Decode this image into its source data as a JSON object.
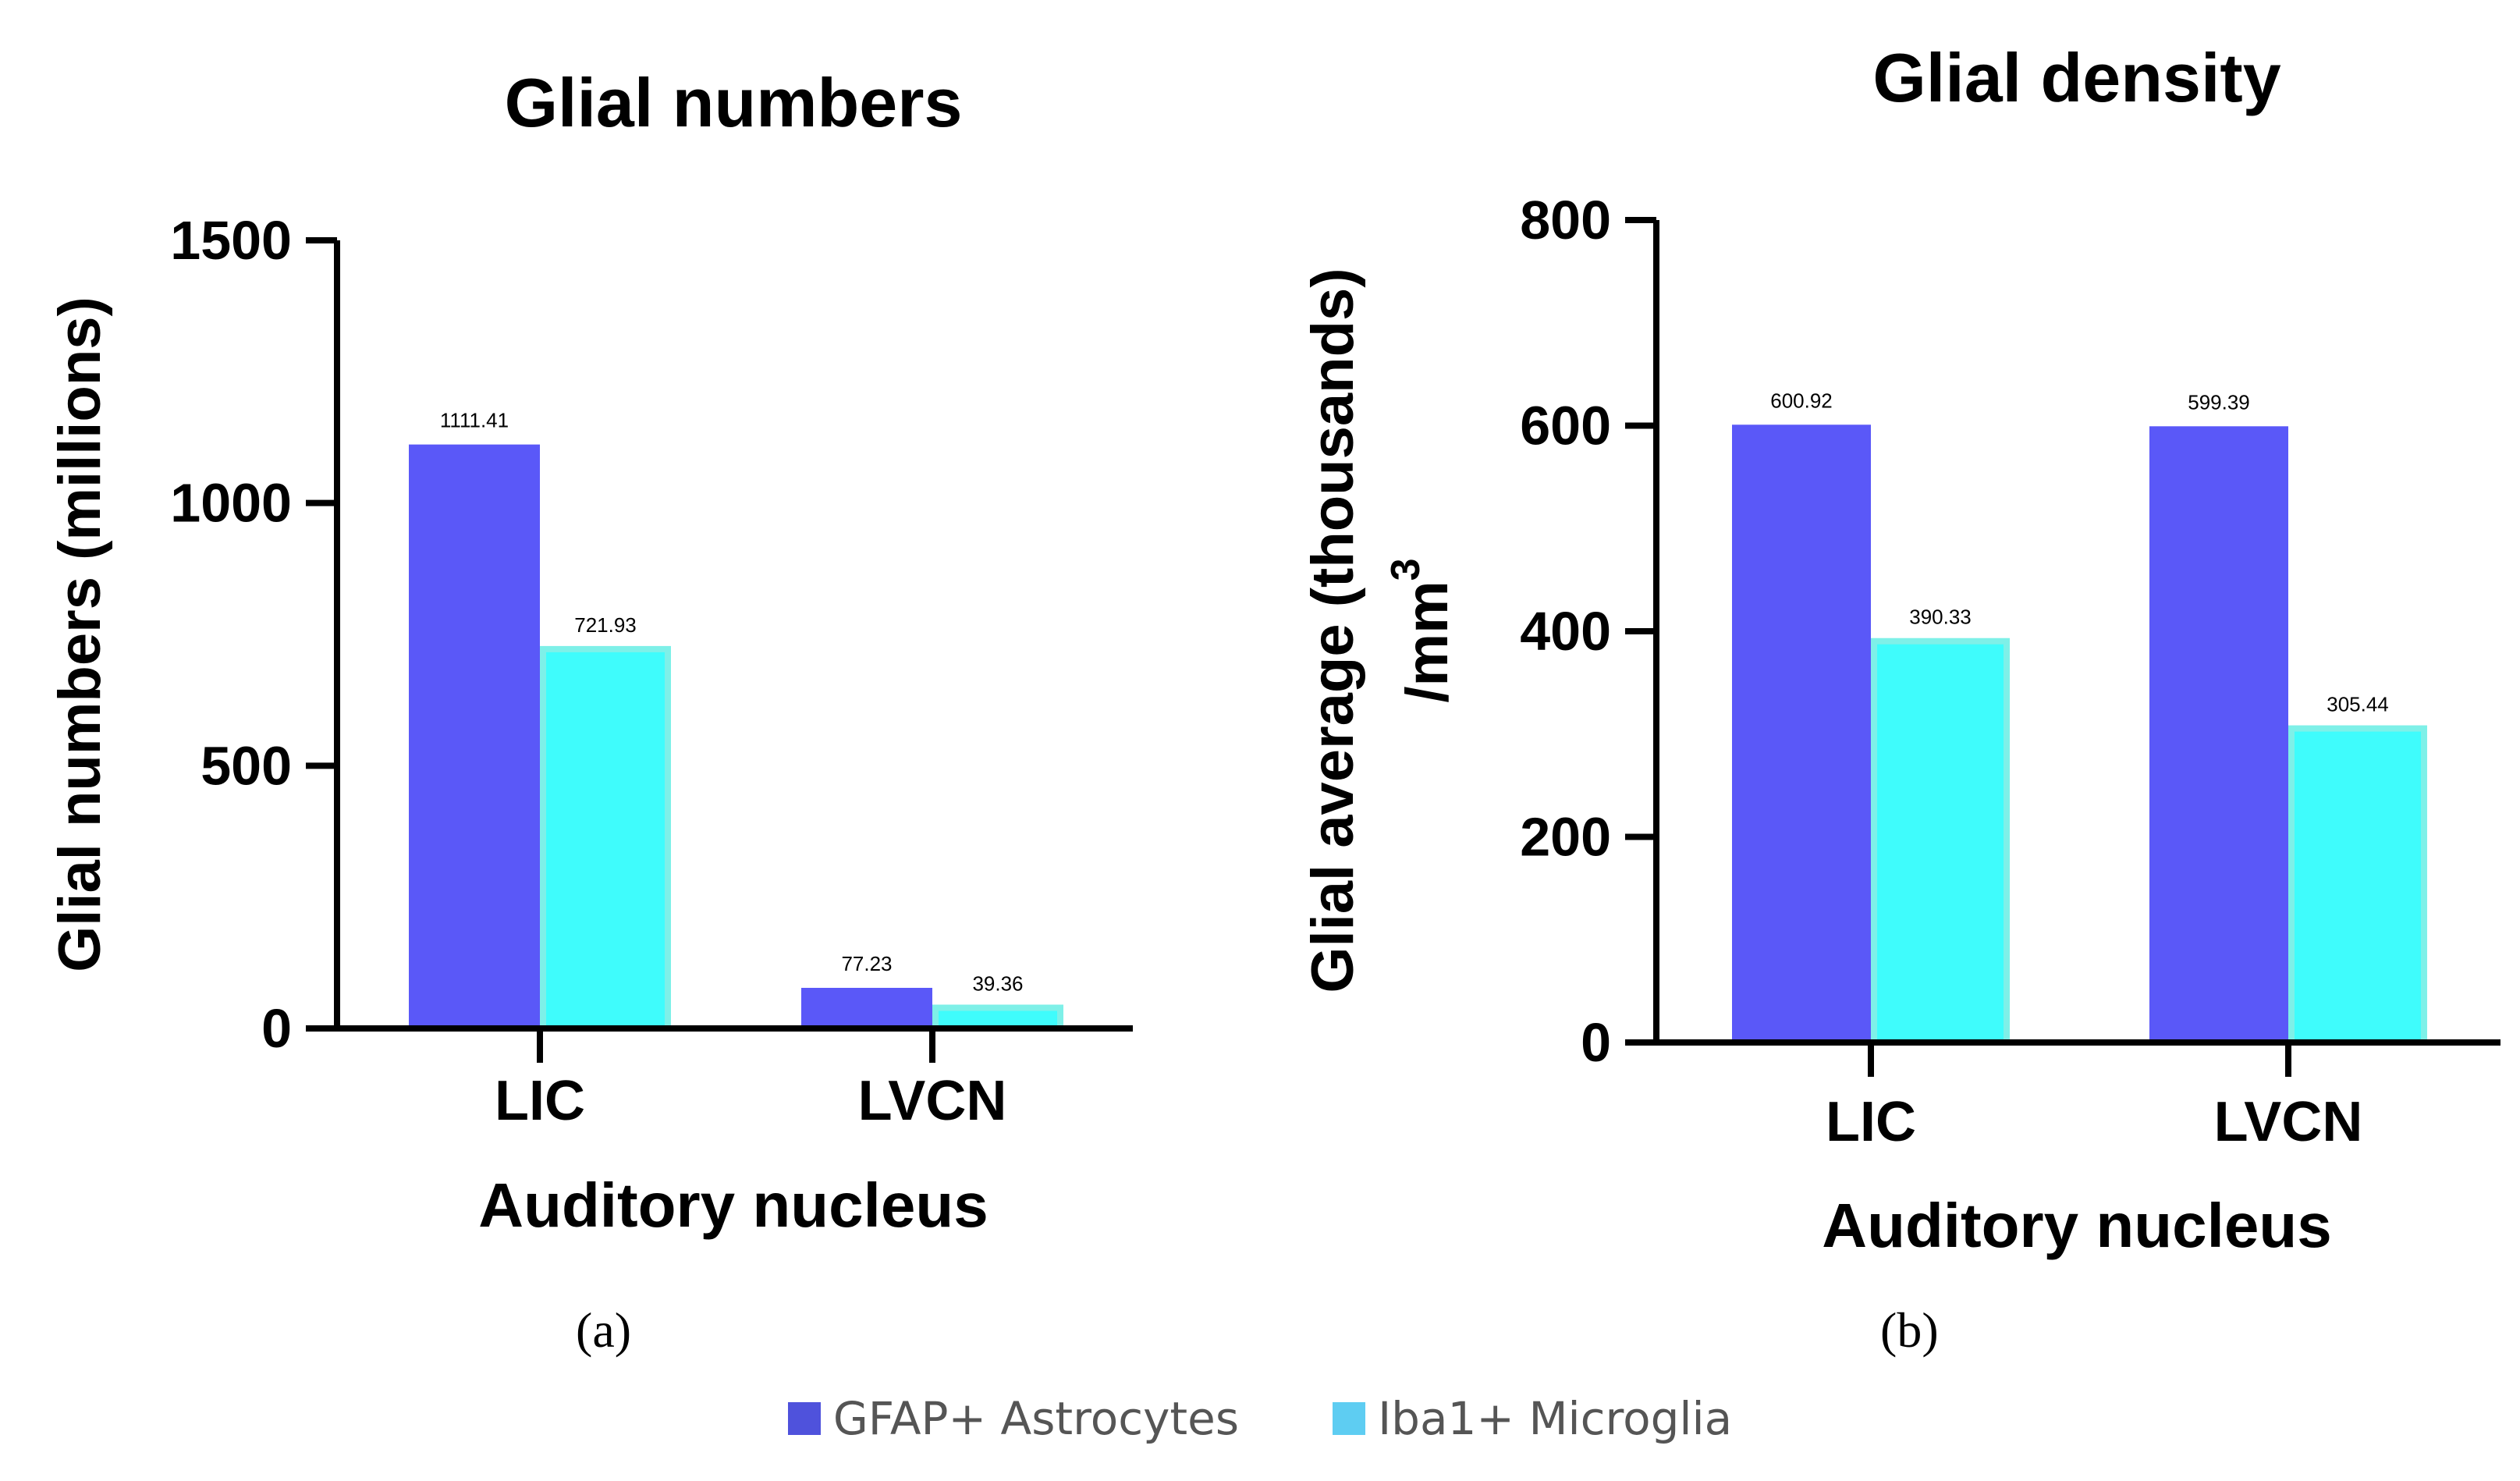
{
  "chart_data": [
    {
      "type": "bar",
      "title": "Glial numbers",
      "xlabel": "Auditory nucleus",
      "ylabel": "Glial numbers (millions)",
      "ylim": [
        0,
        1500
      ],
      "yticks": [
        0,
        500,
        1000,
        1500
      ],
      "categories": [
        "LIC",
        "LVCN"
      ],
      "series": [
        {
          "name": "GFAP+ Astrocytes",
          "values": [
            1111.41,
            77.23
          ],
          "labels": [
            "1111.41",
            "77.23"
          ]
        },
        {
          "name": "Iba1+ Microglia",
          "values": [
            721.93,
            39.36
          ],
          "labels": [
            "721.93",
            "39.36"
          ]
        }
      ],
      "panel": "(a)"
    },
    {
      "type": "bar",
      "title": "Glial density",
      "xlabel": "Auditory nucleus",
      "ylabel": "Glial average (thousands)",
      "ylabel2": "/mm",
      "ylabel2_sup": "3",
      "ylim": [
        0,
        800
      ],
      "yticks": [
        0,
        200,
        400,
        600,
        800
      ],
      "categories": [
        "LIC",
        "LVCN"
      ],
      "series": [
        {
          "name": "GFAP+ Astrocytes",
          "values": [
            600.92,
            599.39
          ],
          "labels": [
            "600.92",
            "599.39"
          ]
        },
        {
          "name": "Iba1+ Microglia",
          "values": [
            390.33,
            305.44
          ],
          "labels": [
            "390.33",
            "305.44"
          ]
        }
      ],
      "panel": "(b)"
    }
  ],
  "legend": [
    {
      "label": "GFAP+ Astrocytes",
      "color": "#4f52dc"
    },
    {
      "label": "Iba1+ Microglia",
      "color": "#5ecdf2"
    }
  ],
  "colors": {
    "astro_bar": "#5a58f8",
    "micro_bar": "#3ffcfc",
    "micro_border": "#7ef0e8",
    "axis": "#000000"
  }
}
